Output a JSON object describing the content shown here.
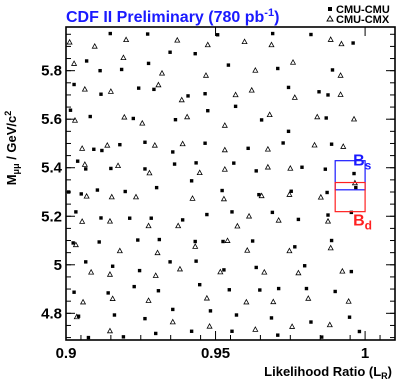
{
  "chart_data": {
    "type": "scatter",
    "title": {
      "main": "CDF II Preliminary (780 pb",
      "sup": "-1",
      "close": ")"
    },
    "xlabel": {
      "main": "Likelihood Ratio (L",
      "sub": "R",
      "close": ")"
    },
    "ylabel": {
      "main": "M",
      "sub": "μμ",
      "rest": " / GeV/c",
      "sup": "2"
    },
    "xlim": [
      0.9,
      1.01
    ],
    "ylim": [
      4.69,
      5.98
    ],
    "x_ticks": [
      "0.9",
      "0.95",
      "1"
    ],
    "y_ticks": [
      "4.8",
      "5",
      "5.2",
      "5.4",
      "5.6",
      "5.8"
    ],
    "x_tick_values": [
      0.9,
      0.95,
      1.0
    ],
    "y_tick_values": [
      4.8,
      5.0,
      5.2,
      5.4,
      5.6,
      5.8
    ],
    "legend": [
      {
        "label": "CMU-CMU",
        "marker": "square"
      },
      {
        "label": "CMU-CMX",
        "marker": "triangle"
      }
    ],
    "signal_windows": [
      {
        "label": "B",
        "sub": "s",
        "color": "#1a1aff",
        "x_range": [
          0.99,
          1.0
        ],
        "y_range": [
          5.309,
          5.429
        ]
      },
      {
        "label": "B",
        "sub": "d",
        "color": "#ff2020",
        "x_range": [
          0.99,
          1.0
        ],
        "y_range": [
          5.219,
          5.339
        ]
      }
    ],
    "series": [
      {
        "name": "CMU-CMU",
        "marker": "square",
        "points": [
          [
            0.9148,
            5.953
          ],
          [
            0.9273,
            5.951
          ],
          [
            0.9348,
            5.876
          ],
          [
            0.9507,
            5.948
          ],
          [
            0.9691,
            5.953
          ],
          [
            0.9819,
            5.949
          ],
          [
            0.996,
            5.914
          ],
          [
            0.9069,
            5.84
          ],
          [
            0.9114,
            5.8
          ],
          [
            0.9186,
            5.805
          ],
          [
            0.9276,
            5.83
          ],
          [
            0.9432,
            5.87
          ],
          [
            0.9543,
            5.823
          ],
          [
            0.9708,
            5.809
          ],
          [
            0.9891,
            5.803
          ],
          [
            0.9027,
            5.743
          ],
          [
            0.9117,
            5.703
          ],
          [
            0.9243,
            5.728
          ],
          [
            0.9294,
            5.723
          ],
          [
            0.9408,
            5.696
          ],
          [
            0.9465,
            5.705
          ],
          [
            0.9567,
            5.653
          ],
          [
            0.9744,
            5.731
          ],
          [
            0.9846,
            5.713
          ],
          [
            0.9876,
            5.7
          ],
          [
            0.9015,
            5.637
          ],
          [
            0.9081,
            5.611
          ],
          [
            0.9225,
            5.603
          ],
          [
            0.9366,
            5.598
          ],
          [
            0.9474,
            5.635
          ],
          [
            0.9654,
            5.597
          ],
          [
            0.9744,
            5.55
          ],
          [
            0.987,
            5.605
          ],
          [
            0.9093,
            5.476
          ],
          [
            0.912,
            5.471
          ],
          [
            0.918,
            5.495
          ],
          [
            0.9264,
            5.505
          ],
          [
            0.9357,
            5.465
          ],
          [
            0.9465,
            5.501
          ],
          [
            0.9609,
            5.48
          ],
          [
            0.9726,
            5.502
          ],
          [
            0.9888,
            5.497
          ],
          [
            0.9039,
            5.427
          ],
          [
            0.9066,
            5.395
          ],
          [
            0.915,
            5.397
          ],
          [
            0.9264,
            5.395
          ],
          [
            0.9363,
            5.415
          ],
          [
            0.9435,
            5.42
          ],
          [
            0.9561,
            5.419
          ],
          [
            0.9636,
            5.387
          ],
          [
            0.9789,
            5.402
          ],
          [
            0.9867,
            5.394
          ],
          [
            0.9963,
            5.376
          ],
          [
            0.9009,
            5.3
          ],
          [
            0.9051,
            5.292
          ],
          [
            0.9105,
            5.308
          ],
          [
            0.9198,
            5.302
          ],
          [
            0.9303,
            5.318
          ],
          [
            0.942,
            5.346
          ],
          [
            0.9522,
            5.306
          ],
          [
            0.9645,
            5.289
          ],
          [
            0.9753,
            5.303
          ],
          [
            0.9873,
            5.298
          ],
          [
            0.9969,
            5.318
          ],
          [
            0.9033,
            5.218
          ],
          [
            0.9117,
            5.193
          ],
          [
            0.9213,
            5.192
          ],
          [
            0.9285,
            5.192
          ],
          [
            0.939,
            5.185
          ],
          [
            0.9471,
            5.207
          ],
          [
            0.9555,
            5.218
          ],
          [
            0.969,
            5.216
          ],
          [
            0.9777,
            5.187
          ],
          [
            0.9876,
            5.205
          ],
          [
            0.9954,
            5.216
          ],
          [
            0.9024,
            5.09
          ],
          [
            0.9111,
            5.094
          ],
          [
            0.924,
            5.102
          ],
          [
            0.9312,
            5.104
          ],
          [
            0.9432,
            5.096
          ],
          [
            0.9525,
            5.096
          ],
          [
            0.9624,
            5.098
          ],
          [
            0.9765,
            5.074
          ],
          [
            0.9888,
            5.1
          ],
          [
            0.9066,
            5.012
          ],
          [
            0.9156,
            4.994
          ],
          [
            0.9246,
            4.976
          ],
          [
            0.9348,
            5.012
          ],
          [
            0.9435,
            5.015
          ],
          [
            0.9528,
            4.979
          ],
          [
            0.9636,
            4.989
          ],
          [
            0.9798,
            4.996
          ],
          [
            0.9954,
            4.972
          ],
          [
            0.9027,
            4.887
          ],
          [
            0.9141,
            4.884
          ],
          [
            0.9228,
            4.91
          ],
          [
            0.9309,
            4.893
          ],
          [
            0.9447,
            4.918
          ],
          [
            0.9546,
            4.897
          ],
          [
            0.9648,
            4.896
          ],
          [
            0.9711,
            4.902
          ],
          [
            0.9804,
            4.902
          ],
          [
            0.99,
            4.89
          ],
          [
            0.9042,
            4.788
          ],
          [
            0.9162,
            4.793
          ],
          [
            0.9264,
            4.778
          ],
          [
            0.9357,
            4.816
          ],
          [
            0.9483,
            4.81
          ],
          [
            0.957,
            4.793
          ],
          [
            0.9687,
            4.781
          ],
          [
            0.9819,
            4.764
          ],
          [
            0.9948,
            4.784
          ],
          [
            0.9075,
            4.7
          ],
          [
            0.9192,
            4.703
          ],
          [
            0.93,
            4.717
          ],
          [
            0.942,
            4.726
          ],
          [
            0.9555,
            4.726
          ],
          [
            0.9708,
            4.71
          ],
          [
            0.9855,
            4.702
          ],
          [
            0.9981,
            4.725
          ]
        ]
      },
      {
        "name": "CMU-CMX",
        "marker": "triangle",
        "points": [
          [
            0.9012,
            5.917
          ],
          [
            0.9096,
            5.9
          ],
          [
            0.9201,
            5.927
          ],
          [
            0.9372,
            5.925
          ],
          [
            0.9474,
            5.906
          ],
          [
            0.9597,
            5.919
          ],
          [
            0.9687,
            5.906
          ],
          [
            0.9885,
            5.928
          ],
          [
            0.9921,
            5.91
          ],
          [
            0.9027,
            5.829
          ],
          [
            0.9192,
            5.853
          ],
          [
            0.9321,
            5.789
          ],
          [
            0.9468,
            5.78
          ],
          [
            0.9633,
            5.801
          ],
          [
            0.9759,
            5.834
          ],
          [
            0.9918,
            5.78
          ],
          [
            0.9063,
            5.723
          ],
          [
            0.915,
            5.714
          ],
          [
            0.9309,
            5.741
          ],
          [
            0.9387,
            5.679
          ],
          [
            0.9567,
            5.7
          ],
          [
            0.9621,
            5.719
          ],
          [
            0.9765,
            5.689
          ],
          [
            0.9918,
            5.701
          ],
          [
            0.903,
            5.595
          ],
          [
            0.9195,
            5.608
          ],
          [
            0.9255,
            5.583
          ],
          [
            0.9405,
            5.609
          ],
          [
            0.9531,
            5.574
          ],
          [
            0.9681,
            5.618
          ],
          [
            0.984,
            5.609
          ],
          [
            0.9963,
            5.6
          ],
          [
            0.9054,
            5.479
          ],
          [
            0.9138,
            5.492
          ],
          [
            0.9297,
            5.492
          ],
          [
            0.939,
            5.498
          ],
          [
            0.9531,
            5.473
          ],
          [
            0.9675,
            5.476
          ],
          [
            0.9831,
            5.493
          ],
          [
            0.9927,
            5.487
          ],
          [
            0.9063,
            5.413
          ],
          [
            0.9174,
            5.408
          ],
          [
            0.9279,
            5.378
          ],
          [
            0.9447,
            5.379
          ],
          [
            0.9531,
            5.393
          ],
          [
            0.9675,
            5.402
          ],
          [
            0.975,
            5.397
          ],
          [
            0.9966,
            5.337
          ],
          [
            0.9069,
            5.282
          ],
          [
            0.9153,
            5.279
          ],
          [
            0.9234,
            5.279
          ],
          [
            0.9423,
            5.273
          ],
          [
            0.9528,
            5.271
          ],
          [
            0.9654,
            5.284
          ],
          [
            0.9747,
            5.289
          ],
          [
            0.9852,
            5.278
          ],
          [
            0.9054,
            5.178
          ],
          [
            0.9147,
            5.179
          ],
          [
            0.9276,
            5.16
          ],
          [
            0.9375,
            5.16
          ],
          [
            0.9573,
            5.159
          ],
          [
            0.9612,
            5.2
          ],
          [
            0.9711,
            5.183
          ],
          [
            0.9876,
            5.179
          ],
          [
            0.9033,
            5.082
          ],
          [
            0.918,
            5.057
          ],
          [
            0.9306,
            5.049
          ],
          [
            0.9432,
            5.075
          ],
          [
            0.954,
            5.099
          ],
          [
            0.9606,
            5.059
          ],
          [
            0.9747,
            5.057
          ],
          [
            0.9885,
            5.069
          ],
          [
            0.9084,
            4.969
          ],
          [
            0.9147,
            4.96
          ],
          [
            0.93,
            4.955
          ],
          [
            0.9381,
            4.982
          ],
          [
            0.9516,
            4.97
          ],
          [
            0.9663,
            4.969
          ],
          [
            0.9777,
            4.966
          ],
          [
            0.9924,
            4.973
          ],
          [
            0.9057,
            4.846
          ],
          [
            0.9156,
            4.86
          ],
          [
            0.9276,
            4.852
          ],
          [
            0.9471,
            4.862
          ],
          [
            0.9603,
            4.846
          ],
          [
            0.9693,
            4.847
          ],
          [
            0.981,
            4.861
          ],
          [
            0.9945,
            4.849
          ],
          [
            0.9036,
            4.785
          ],
          [
            0.9147,
            4.727
          ],
          [
            0.9357,
            4.764
          ],
          [
            0.948,
            4.746
          ],
          [
            0.9633,
            4.733
          ],
          [
            0.9756,
            4.745
          ],
          [
            0.9882,
            4.752
          ]
        ]
      }
    ]
  }
}
